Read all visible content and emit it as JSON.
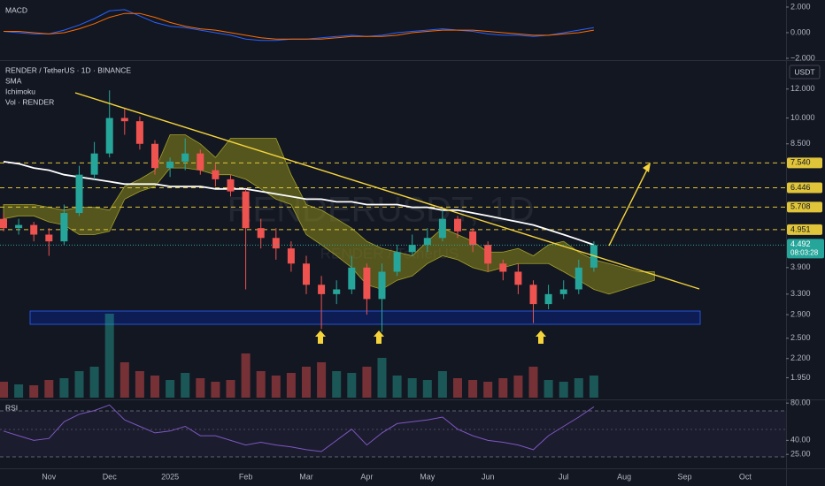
{
  "chart_data": {
    "type": "candlestick",
    "title": "RENDER / TetherUS · 1D · BINANCE",
    "indicators": [
      "SMA",
      "Ichimoku",
      "Vol · RENDER"
    ],
    "currency": "USDT",
    "watermark": "RENDERUSDT, 1D",
    "watermark_sub": "RENDER / TetherUS",
    "log_scale": true,
    "up_color": "#26a69a",
    "down_color": "#ef5350",
    "categories": [
      null,
      null,
      null,
      "Nov",
      null,
      null,
      null,
      "Dec",
      null,
      null,
      null,
      "2025",
      null,
      null,
      null,
      null,
      "Feb",
      null,
      null,
      null,
      "Mar",
      null,
      null,
      null,
      "Apr",
      null,
      null,
      null,
      "May",
      null,
      null,
      null,
      "Jun",
      null,
      null,
      null,
      null,
      "Jul",
      null,
      null,
      null,
      "Aug",
      null,
      null,
      null,
      "Sep",
      null,
      null,
      null,
      "Oct",
      null,
      null
    ],
    "open": [
      5.3,
      5.0,
      5.1,
      4.8,
      4.6,
      5.5,
      7.0,
      8.0,
      10.0,
      9.8,
      8.5,
      7.3,
      7.6,
      8.0,
      7.2,
      6.8,
      6.3,
      5.0,
      4.7,
      4.4,
      4.0,
      3.5,
      3.3,
      3.4,
      3.9,
      3.2,
      3.8,
      4.3,
      4.5,
      4.7,
      5.3,
      4.9,
      4.5,
      4.0,
      3.8,
      3.5,
      3.1,
      3.3,
      3.4,
      3.9,
      null,
      null,
      null,
      null,
      null,
      null,
      null,
      null,
      null,
      null,
      null,
      null
    ],
    "high": [
      5.5,
      5.3,
      5.2,
      5.0,
      5.8,
      7.4,
      8.6,
      11.9,
      10.6,
      10.1,
      8.7,
      7.8,
      8.8,
      8.2,
      7.5,
      7.0,
      6.4,
      5.3,
      5.0,
      4.6,
      4.2,
      3.7,
      3.6,
      4.2,
      4.0,
      4.0,
      4.5,
      4.8,
      5.0,
      5.6,
      5.4,
      5.0,
      4.6,
      4.1,
      4.0,
      3.6,
      3.5,
      3.6,
      4.1,
      4.6,
      null,
      null,
      null,
      null,
      null,
      null,
      null,
      null,
      null,
      null,
      null,
      null
    ],
    "low": [
      4.9,
      4.8,
      4.6,
      4.2,
      4.5,
      5.4,
      6.8,
      7.8,
      9.0,
      8.2,
      7.0,
      6.9,
      7.2,
      7.0,
      6.5,
      6.1,
      3.4,
      4.4,
      4.1,
      3.8,
      3.3,
      2.65,
      3.1,
      3.3,
      2.9,
      2.6,
      3.7,
      4.2,
      4.3,
      4.6,
      4.7,
      4.3,
      3.8,
      3.6,
      3.3,
      2.75,
      3.0,
      3.2,
      3.3,
      3.8,
      null,
      null,
      null,
      null,
      null,
      null,
      null,
      null,
      null,
      null,
      null,
      null
    ],
    "close": [
      5.0,
      5.1,
      4.8,
      4.6,
      5.5,
      7.0,
      8.0,
      10.0,
      9.8,
      8.5,
      7.3,
      7.6,
      8.0,
      7.2,
      6.8,
      6.3,
      5.0,
      4.7,
      4.4,
      4.0,
      3.5,
      3.3,
      3.4,
      3.9,
      3.2,
      3.8,
      4.3,
      4.5,
      4.7,
      5.3,
      4.9,
      4.5,
      4.0,
      3.8,
      3.5,
      3.1,
      3.3,
      3.4,
      3.9,
      4.49,
      null,
      null,
      null,
      null,
      null,
      null,
      null,
      null,
      null,
      null,
      null,
      null
    ],
    "sma": {
      "color": "#ffffff",
      "values": [
        7.6,
        7.5,
        7.3,
        7.2,
        7.0,
        6.9,
        6.8,
        6.7,
        6.6,
        6.6,
        6.6,
        6.5,
        6.5,
        6.5,
        6.4,
        6.4,
        6.4,
        6.3,
        6.2,
        6.1,
        6.0,
        6.0,
        5.9,
        5.9,
        5.8,
        5.8,
        5.8,
        5.7,
        5.7,
        5.6,
        5.6,
        5.5,
        5.4,
        5.3,
        5.2,
        5.1,
        4.95,
        4.8,
        4.65,
        4.5,
        null,
        null,
        null,
        null,
        null,
        null,
        null,
        null,
        null,
        null,
        null,
        null
      ]
    },
    "ichimoku": {
      "color": "#8a8a1c",
      "upper": [
        5.8,
        5.8,
        5.8,
        5.7,
        5.6,
        5.7,
        5.7,
        5.6,
        6.5,
        6.8,
        7.2,
        9.0,
        9.0,
        8.5,
        7.8,
        8.8,
        8.8,
        8.8,
        8.8,
        7.0,
        5.8,
        5.6,
        5.3,
        5.0,
        4.6,
        4.4,
        4.3,
        4.2,
        4.6,
        5.0,
        4.8,
        4.6,
        4.3,
        4.3,
        4.4,
        4.2,
        4.5,
        4.6,
        4.3,
        4.1,
        4.0,
        3.9,
        3.8,
        3.8,
        null,
        null,
        null,
        null,
        null,
        null,
        null,
        null
      ],
      "lower": [
        5.3,
        5.4,
        5.4,
        5.2,
        5.1,
        4.8,
        4.8,
        4.9,
        6.0,
        6.3,
        6.5,
        7.3,
        7.3,
        7.2,
        7.0,
        7.0,
        6.8,
        6.4,
        6.0,
        5.8,
        4.8,
        4.5,
        4.2,
        3.9,
        3.5,
        3.4,
        3.6,
        3.7,
        4.0,
        4.2,
        4.1,
        3.9,
        3.8,
        3.9,
        4.0,
        4.0,
        4.0,
        3.8,
        3.6,
        3.4,
        3.3,
        3.4,
        3.5,
        3.6,
        null,
        null,
        null,
        null,
        null,
        null,
        null,
        null
      ]
    },
    "volume": [
      18,
      15,
      14,
      20,
      22,
      30,
      35,
      95,
      40,
      30,
      25,
      20,
      28,
      22,
      18,
      20,
      50,
      30,
      25,
      28,
      35,
      40,
      30,
      28,
      35,
      45,
      25,
      22,
      20,
      30,
      22,
      20,
      18,
      22,
      25,
      35,
      20,
      18,
      22,
      25,
      null,
      null,
      null,
      null,
      null,
      null,
      null,
      null,
      null,
      null,
      null,
      null
    ],
    "vlim": [
      0,
      100
    ],
    "ylim": [
      1.72,
      14.4
    ],
    "yticks": [
      {
        "value": 12,
        "label": "12.000"
      },
      {
        "value": 10,
        "label": "10.000"
      },
      {
        "value": 8.5,
        "label": "8.500"
      },
      {
        "value": 3.9,
        "label": "3.900"
      },
      {
        "value": 3.3,
        "label": "3.300"
      },
      {
        "value": 2.9,
        "label": "2.900"
      },
      {
        "value": 2.5,
        "label": "2.500"
      },
      {
        "value": 2.2,
        "label": "2.200"
      },
      {
        "value": 1.95,
        "label": "1.950"
      }
    ],
    "levels": [
      {
        "value": 7.54,
        "label": "7.540"
      },
      {
        "value": 6.446,
        "label": "6.446"
      },
      {
        "value": 5.708,
        "label": "5.708"
      },
      {
        "value": 4.951,
        "label": "4.951"
      }
    ],
    "level_color": "#e0c53a",
    "last_price": {
      "value": 4.492,
      "label": "4.492"
    },
    "countdown": "08:03:28",
    "macd": {
      "title": "MACD",
      "ylim": [
        -2.14,
        2.55
      ],
      "yticks": [
        {
          "value": 2,
          "label": "2.000"
        },
        {
          "value": 0,
          "label": "0.000"
        },
        {
          "value": -2,
          "label": "−2.000"
        }
      ],
      "series": [
        {
          "color": "#2962ff",
          "values": [
            0.1,
            0.0,
            -0.1,
            -0.1,
            0.2,
            0.6,
            1.1,
            1.7,
            1.8,
            1.3,
            0.8,
            0.5,
            0.4,
            0.2,
            0.0,
            -0.2,
            -0.5,
            -0.6,
            -0.6,
            -0.5,
            -0.5,
            -0.4,
            -0.3,
            -0.2,
            -0.3,
            -0.2,
            0.0,
            0.1,
            0.2,
            0.3,
            0.2,
            0.1,
            -0.1,
            -0.2,
            -0.2,
            -0.3,
            -0.2,
            0.0,
            0.2,
            0.4,
            null,
            null,
            null,
            null,
            null,
            null,
            null,
            null,
            null,
            null,
            null,
            null
          ]
        },
        {
          "color": "#ff6d00",
          "values": [
            0.1,
            0.1,
            0.0,
            -0.1,
            0.0,
            0.3,
            0.7,
            1.2,
            1.5,
            1.5,
            1.2,
            0.8,
            0.5,
            0.3,
            0.2,
            0.0,
            -0.2,
            -0.4,
            -0.5,
            -0.5,
            -0.5,
            -0.5,
            -0.4,
            -0.3,
            -0.3,
            -0.3,
            -0.2,
            0.0,
            0.1,
            0.2,
            0.2,
            0.2,
            0.1,
            0.0,
            -0.1,
            -0.2,
            -0.2,
            -0.1,
            0.0,
            0.2,
            null,
            null,
            null,
            null,
            null,
            null,
            null,
            null,
            null,
            null,
            null,
            null
          ]
        }
      ]
    },
    "rsi": {
      "title": "RSI",
      "color": "#7e57c2",
      "ylim": [
        10,
        83
      ],
      "yticks": [
        {
          "value": 80,
          "label": "80.00"
        },
        {
          "value": 40,
          "label": "40.00"
        },
        {
          "value": 25,
          "label": "25.00"
        }
      ],
      "values": [
        50,
        45,
        40,
        42,
        60,
        68,
        72,
        78,
        62,
        55,
        48,
        50,
        55,
        45,
        45,
        40,
        35,
        38,
        35,
        33,
        30,
        28,
        40,
        52,
        35,
        48,
        58,
        60,
        62,
        65,
        52,
        45,
        40,
        38,
        35,
        30,
        45,
        55,
        65,
        76,
        null,
        null,
        null,
        null,
        null,
        null,
        null,
        null,
        null,
        null,
        null,
        null
      ]
    }
  }
}
